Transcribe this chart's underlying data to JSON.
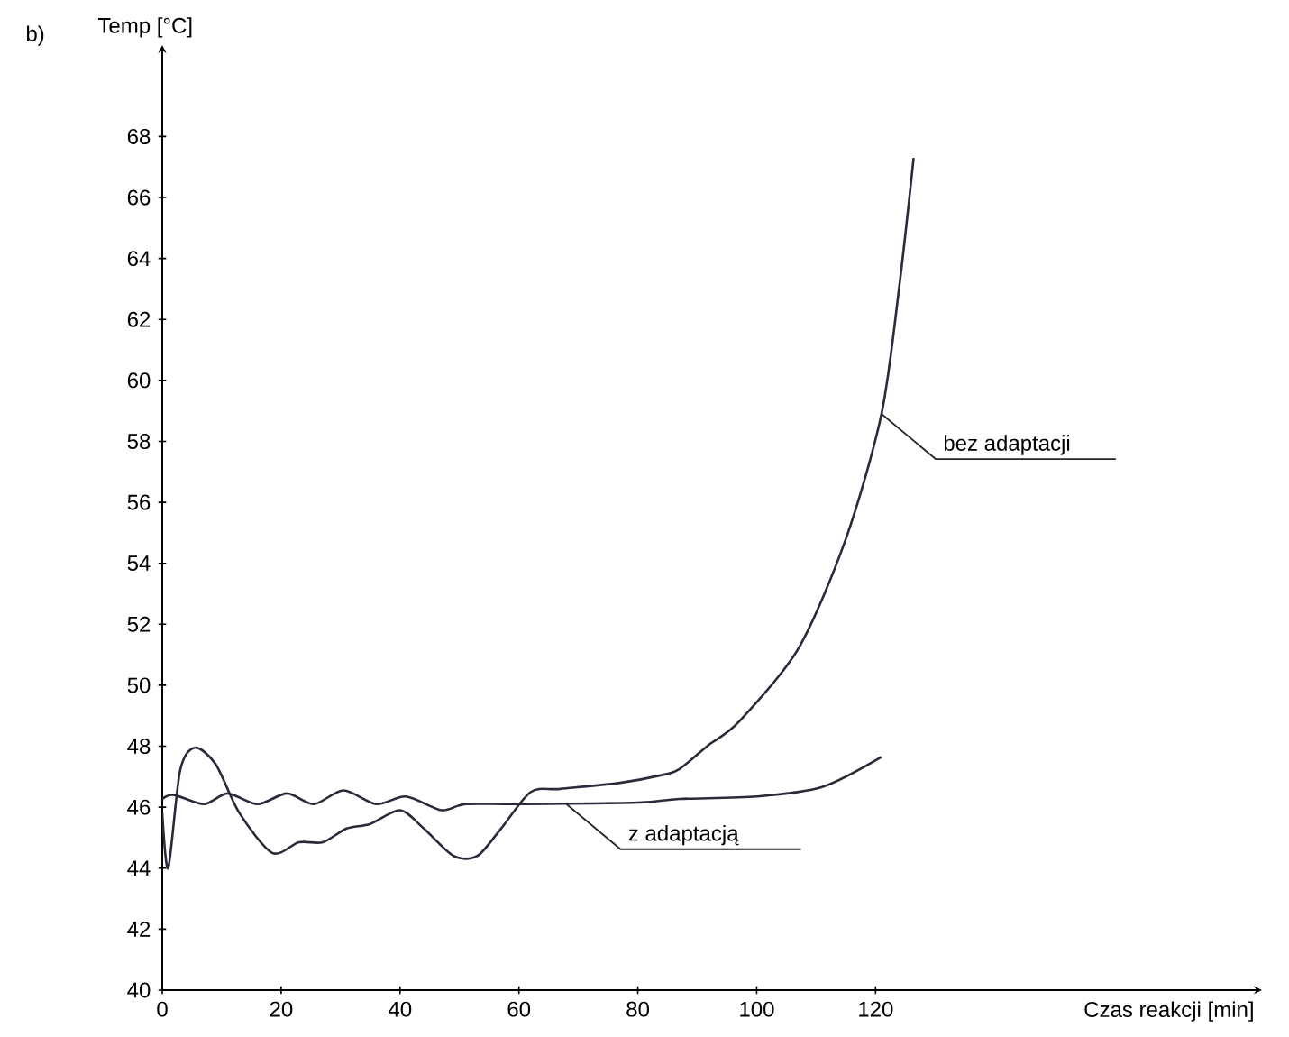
{
  "chart_data": {
    "type": "line",
    "xlabel": "Czas reakcji [min]",
    "ylabel": "Temp [°C]",
    "xlim": [
      0,
      185
    ],
    "ylim": [
      40,
      71
    ],
    "xticks": [
      0,
      20,
      40,
      60,
      80,
      100,
      120
    ],
    "yticks": [
      40,
      42,
      44,
      46,
      48,
      50,
      52,
      54,
      56,
      58,
      60,
      62,
      64,
      66,
      68
    ],
    "marker": "none",
    "line_style": "solid",
    "grid": false,
    "annotations": [
      "b)",
      {
        "text": "bez adaptacji",
        "x": 121,
        "y": 58.9
      },
      {
        "text": "z adaptacją",
        "x": 68,
        "y": 46.1
      }
    ],
    "series": [
      {
        "color": "#2a2a3a",
        "x": [
          0,
          1,
          3,
          5.5,
          9,
          13,
          18.5,
          23,
          27,
          31,
          35,
          40,
          44,
          49,
          53,
          57,
          62,
          67,
          77,
          84,
          87,
          92,
          97,
          107,
          115,
          121,
          124,
          126.4
        ],
        "values": [
          45.8,
          44.0,
          47.2,
          47.95,
          47.4,
          45.8,
          44.5,
          44.85,
          44.85,
          45.3,
          45.45,
          45.9,
          45.3,
          44.4,
          44.4,
          45.3,
          46.5,
          46.6,
          46.8,
          47.05,
          47.25,
          48.05,
          48.8,
          51.2,
          54.8,
          58.9,
          63.1,
          67.3
        ]
      },
      {
        "color": "#2a2a3a",
        "x": [
          0,
          2,
          7,
          11,
          16,
          21,
          25.5,
          30.5,
          36,
          41,
          47,
          51,
          60,
          80,
          87,
          100,
          111,
          121
        ],
        "values": [
          46.27,
          46.4,
          46.1,
          46.45,
          46.1,
          46.45,
          46.1,
          46.55,
          46.1,
          46.35,
          45.9,
          46.1,
          46.1,
          46.15,
          46.27,
          46.35,
          46.66,
          47.65
        ]
      }
    ]
  }
}
